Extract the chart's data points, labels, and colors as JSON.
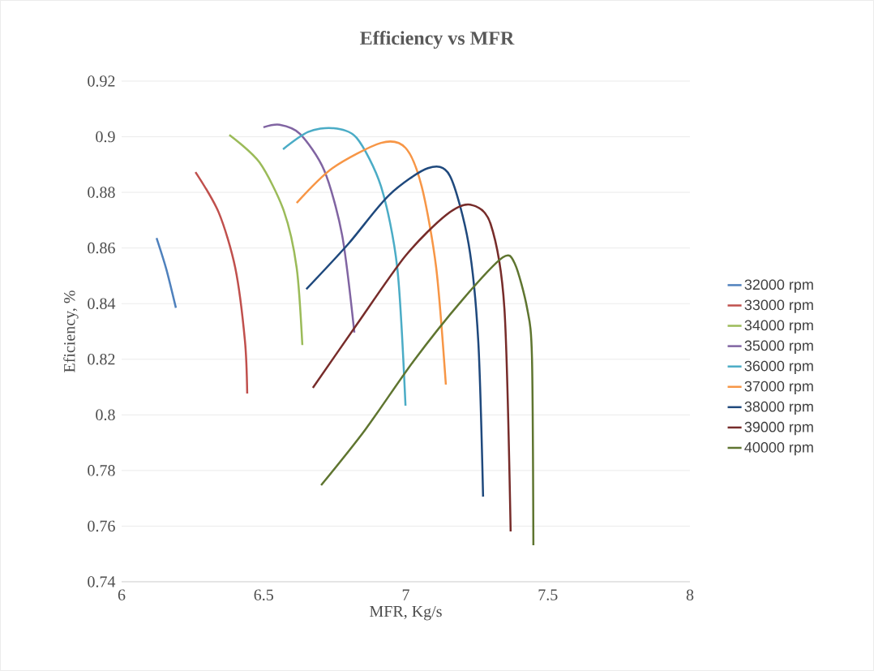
{
  "chart_data": {
    "type": "line",
    "title": "Efficiency vs MFR",
    "xlabel": "MFR, Kg/s",
    "ylabel": "Eficiency, %",
    "xlim": [
      6,
      8
    ],
    "xticks": [
      6,
      6.5,
      7,
      7.5,
      8
    ],
    "ylim": [
      0.74,
      0.92
    ],
    "yticks": [
      0.74,
      0.76,
      0.78,
      0.8,
      0.82,
      0.84,
      0.86,
      0.88,
      0.9,
      0.92
    ],
    "grid": "y",
    "legend": "right",
    "marker": "none",
    "line_style": "solid",
    "series": [
      {
        "name": "32000 rpm",
        "color": "#4f81bd",
        "x": [
          6.123,
          6.157,
          6.191
        ],
        "values": [
          0.8636,
          0.8525,
          0.8385
        ]
      },
      {
        "name": "33000 rpm",
        "color": "#c0504d",
        "x": [
          6.26,
          6.342,
          6.4,
          6.434,
          6.442
        ],
        "values": [
          0.8873,
          0.8727,
          0.8528,
          0.8266,
          0.8077
        ]
      },
      {
        "name": "34000 rpm",
        "color": "#9bbb59",
        "x": [
          6.379,
          6.485,
          6.571,
          6.616,
          6.636
        ],
        "values": [
          0.9007,
          0.8908,
          0.8733,
          0.8529,
          0.8251
        ]
      },
      {
        "name": "35000 rpm",
        "color": "#8064a2",
        "x": [
          6.499,
          6.556,
          6.628,
          6.713,
          6.776,
          6.819
        ],
        "values": [
          0.9034,
          0.9043,
          0.901,
          0.8879,
          0.8646,
          0.8296
        ]
      },
      {
        "name": "36000 rpm",
        "color": "#4bacc6",
        "x": [
          6.568,
          6.656,
          6.742,
          6.827,
          6.913,
          6.97,
          6.999
        ],
        "values": [
          0.8955,
          0.9017,
          0.9031,
          0.8996,
          0.8821,
          0.8529,
          0.8033
        ]
      },
      {
        "name": "37000 rpm",
        "color": "#f79646",
        "x": [
          6.616,
          6.742,
          6.913,
          6.999,
          7.056,
          7.107,
          7.141
        ],
        "values": [
          0.8762,
          0.8887,
          0.8978,
          0.896,
          0.8821,
          0.8529,
          0.8109
        ]
      },
      {
        "name": "38000 rpm",
        "color": "#1f497d",
        "x": [
          6.65,
          6.798,
          6.941,
          7.078,
          7.155,
          7.221,
          7.255,
          7.272
        ],
        "values": [
          0.8452,
          0.8615,
          0.879,
          0.8887,
          0.886,
          0.8615,
          0.8266,
          0.7706
        ]
      },
      {
        "name": "39000 rpm",
        "color": "#772c2a",
        "x": [
          6.673,
          6.827,
          6.999,
          7.141,
          7.227,
          7.298,
          7.347,
          7.369
        ],
        "values": [
          0.8097,
          0.8324,
          0.8572,
          0.8718,
          0.8756,
          0.8688,
          0.8383,
          0.7581
        ]
      },
      {
        "name": "40000 rpm",
        "color": "#5f7530",
        "x": [
          6.702,
          6.856,
          7.027,
          7.198,
          7.341,
          7.384,
          7.427,
          7.444,
          7.449
        ],
        "values": [
          0.7747,
          0.7945,
          0.8193,
          0.8412,
          0.8566,
          0.8543,
          0.8383,
          0.8208,
          0.7531
        ]
      }
    ]
  }
}
